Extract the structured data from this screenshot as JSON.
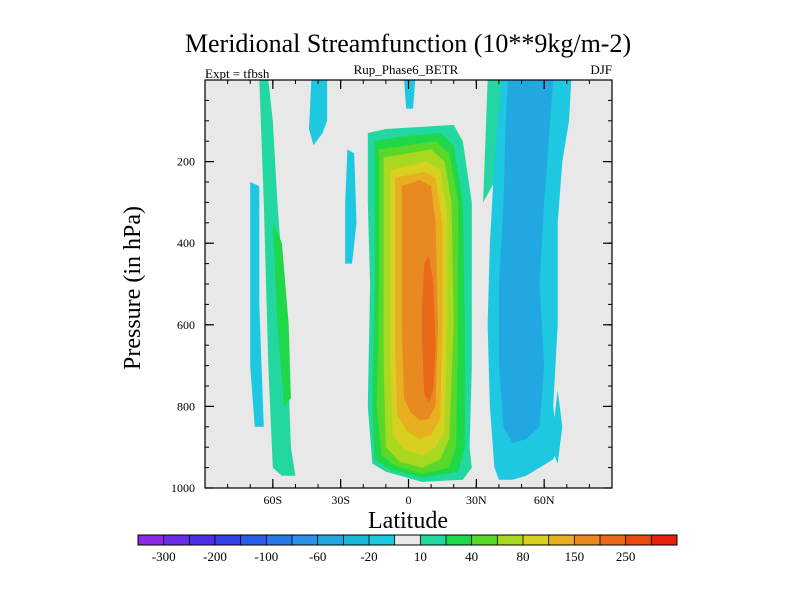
{
  "chart_data": {
    "type": "contour",
    "title": "Meridional Streamfunction (10**9kg/m-2)",
    "subtitle": "Rup_Phase6_BETR",
    "left_label": "Expt = tfbsh",
    "right_label": "DJF",
    "xlabel": "Latitude",
    "ylabel": "Pressure (in hPa)",
    "xlim": [
      -90,
      90
    ],
    "ylim": [
      1000,
      0
    ],
    "x_ticks": [
      {
        "value": -60,
        "label": "60S"
      },
      {
        "value": -30,
        "label": "30S"
      },
      {
        "value": 0,
        "label": "0"
      },
      {
        "value": 30,
        "label": "30N"
      },
      {
        "value": 60,
        "label": "60N"
      }
    ],
    "y_ticks": [
      {
        "value": 200,
        "label": "200"
      },
      {
        "value": 400,
        "label": "400"
      },
      {
        "value": 600,
        "label": "600"
      },
      {
        "value": 800,
        "label": "800"
      },
      {
        "value": 1000,
        "label": "1000"
      }
    ],
    "colorbar": {
      "levels": [
        -300,
        -250,
        -200,
        -150,
        -100,
        -80,
        -60,
        -40,
        -20,
        -10,
        10,
        20,
        40,
        60,
        80,
        100,
        150,
        200,
        250,
        300
      ],
      "labels": [
        "-300",
        "-200",
        "-100",
        "-60",
        "-20",
        "10",
        "40",
        "80",
        "150",
        "250"
      ],
      "colors": [
        "#8a2be2",
        "#6a2ee6",
        "#4b30e8",
        "#3440e8",
        "#2a5ee8",
        "#2a78e8",
        "#2a92e8",
        "#22a8e0",
        "#1ab8d8",
        "#1ec8e0",
        "#e8e8e8",
        "#22d8a0",
        "#1ed84a",
        "#5ad82a",
        "#a8d820",
        "#d8d020",
        "#e8b020",
        "#e88a20",
        "#e86a18",
        "#e84a10",
        "#e82010"
      ]
    },
    "regions": [
      {
        "value": "0-10",
        "color": "#e8e8e8",
        "points": [
          [
            -90,
            0
          ],
          [
            90,
            0
          ],
          [
            90,
            1000
          ],
          [
            -90,
            1000
          ]
        ]
      },
      {
        "value": "-10 to -20",
        "color": "#1ec8e0",
        "points": [
          [
            -70,
            250
          ],
          [
            -66,
            260
          ],
          [
            -66,
            550
          ],
          [
            -64,
            850
          ],
          [
            -68,
            850
          ],
          [
            -70,
            700
          ]
        ]
      },
      {
        "value": "10 to 20",
        "color": "#22d8a0",
        "points": [
          [
            -66,
            0
          ],
          [
            -62,
            0
          ],
          [
            -60,
            100
          ],
          [
            -58,
            300
          ],
          [
            -54,
            600
          ],
          [
            -52,
            900
          ],
          [
            -50,
            970
          ],
          [
            -56,
            970
          ],
          [
            -60,
            950
          ],
          [
            -62,
            700
          ],
          [
            -64,
            300
          ]
        ]
      },
      {
        "value": "20 to 40",
        "color": "#1ed84a",
        "points": [
          [
            -60,
            350
          ],
          [
            -56,
            400
          ],
          [
            -53,
            600
          ],
          [
            -52,
            780
          ],
          [
            -55,
            800
          ],
          [
            -58,
            600
          ]
        ]
      },
      {
        "value": "-10 to -20",
        "color": "#1ec8e0",
        "points": [
          [
            -43,
            0
          ],
          [
            -36,
            0
          ],
          [
            -36,
            100
          ],
          [
            -38,
            130
          ],
          [
            -42,
            160
          ],
          [
            -44,
            120
          ]
        ]
      },
      {
        "value": "-10 to -20",
        "color": "#1ec8e0",
        "points": [
          [
            -27,
            170
          ],
          [
            -24,
            180
          ],
          [
            -23,
            350
          ],
          [
            -25,
            450
          ],
          [
            -28,
            450
          ],
          [
            -28,
            300
          ]
        ]
      },
      {
        "value": "-10 to -20",
        "color": "#1ec8e0",
        "points": [
          [
            -2,
            0
          ],
          [
            3,
            0
          ],
          [
            2,
            70
          ],
          [
            -1,
            70
          ]
        ]
      },
      {
        "value": "10 to 20",
        "color": "#22d8a0",
        "points": [
          [
            -18,
            130
          ],
          [
            -10,
            120
          ],
          [
            20,
            110
          ],
          [
            24,
            150
          ],
          [
            28,
            300
          ],
          [
            28,
            700
          ],
          [
            27,
            900
          ],
          [
            28,
            950
          ],
          [
            24,
            980
          ],
          [
            6,
            985
          ],
          [
            -10,
            960
          ],
          [
            -16,
            940
          ],
          [
            -18,
            800
          ],
          [
            -17,
            500
          ],
          [
            -18,
            300
          ]
        ]
      },
      {
        "value": "20 to 40",
        "color": "#1ed84a",
        "points": [
          [
            -15,
            150
          ],
          [
            -5,
            140
          ],
          [
            14,
            130
          ],
          [
            20,
            160
          ],
          [
            24,
            300
          ],
          [
            25,
            600
          ],
          [
            25,
            900
          ],
          [
            22,
            960
          ],
          [
            6,
            975
          ],
          [
            -8,
            955
          ],
          [
            -15,
            930
          ],
          [
            -16,
            800
          ],
          [
            -15,
            500
          ],
          [
            -15,
            300
          ]
        ]
      },
      {
        "value": "40 to 60",
        "color": "#5ad82a",
        "points": [
          [
            -13,
            170
          ],
          [
            12,
            150
          ],
          [
            18,
            180
          ],
          [
            22,
            300
          ],
          [
            22,
            600
          ],
          [
            21,
            900
          ],
          [
            18,
            950
          ],
          [
            6,
            965
          ],
          [
            -6,
            945
          ],
          [
            -12,
            920
          ],
          [
            -14,
            800
          ],
          [
            -13,
            500
          ]
        ]
      },
      {
        "value": "60 to 80",
        "color": "#a8d820",
        "points": [
          [
            -11,
            190
          ],
          [
            10,
            170
          ],
          [
            16,
            200
          ],
          [
            19,
            300
          ],
          [
            20,
            600
          ],
          [
            18,
            880
          ],
          [
            14,
            930
          ],
          [
            6,
            950
          ],
          [
            -4,
            935
          ],
          [
            -10,
            900
          ],
          [
            -11,
            700
          ],
          [
            -11,
            400
          ]
        ]
      },
      {
        "value": "80 to 100",
        "color": "#d8d020",
        "points": [
          [
            -8,
            220
          ],
          [
            8,
            200
          ],
          [
            14,
            220
          ],
          [
            17,
            320
          ],
          [
            17,
            600
          ],
          [
            16,
            860
          ],
          [
            12,
            900
          ],
          [
            6,
            920
          ],
          [
            -2,
            905
          ],
          [
            -7,
            870
          ],
          [
            -8,
            700
          ],
          [
            -8,
            400
          ]
        ]
      },
      {
        "value": "100 to 150",
        "color": "#e8b020",
        "points": [
          [
            -6,
            240
          ],
          [
            7,
            225
          ],
          [
            12,
            240
          ],
          [
            15,
            350
          ],
          [
            15,
            600
          ],
          [
            14,
            830
          ],
          [
            10,
            870
          ],
          [
            5,
            880
          ],
          [
            -1,
            860
          ],
          [
            -5,
            820
          ],
          [
            -6,
            650
          ],
          [
            -6,
            400
          ]
        ]
      },
      {
        "value": "150 to 200",
        "color": "#e88a20",
        "points": [
          [
            -3,
            260
          ],
          [
            5,
            245
          ],
          [
            10,
            260
          ],
          [
            12,
            350
          ],
          [
            13,
            600
          ],
          [
            12,
            800
          ],
          [
            9,
            830
          ],
          [
            5,
            835
          ],
          [
            1,
            815
          ],
          [
            -2,
            780
          ],
          [
            -3,
            600
          ],
          [
            -3,
            400
          ]
        ]
      },
      {
        "value": "200 to 250",
        "color": "#e86a18",
        "points": [
          [
            7,
            450
          ],
          [
            9,
            430
          ],
          [
            11,
            500
          ],
          [
            12,
            650
          ],
          [
            11,
            760
          ],
          [
            9,
            790
          ],
          [
            7,
            770
          ],
          [
            6,
            650
          ],
          [
            6,
            550
          ]
        ]
      },
      {
        "value": "10 to 20",
        "color": "#22d8a0",
        "points": [
          [
            35,
            0
          ],
          [
            44,
            0
          ],
          [
            42,
            150
          ],
          [
            38,
            250
          ],
          [
            33,
            300
          ],
          [
            34,
            150
          ]
        ]
      },
      {
        "value": "-10 to -20",
        "color": "#1ec8e0",
        "points": [
          [
            41,
            0
          ],
          [
            72,
            0
          ],
          [
            71,
            100
          ],
          [
            68,
            200
          ],
          [
            66,
            350
          ],
          [
            66,
            600
          ],
          [
            64,
            800
          ],
          [
            66,
            900
          ],
          [
            64,
            930
          ],
          [
            58,
            950
          ],
          [
            52,
            970
          ],
          [
            46,
            980
          ],
          [
            40,
            980
          ],
          [
            38,
            950
          ],
          [
            36,
            800
          ],
          [
            35,
            600
          ],
          [
            36,
            400
          ],
          [
            38,
            200
          ]
        ]
      },
      {
        "value": "-20 to -40",
        "color": "#22a8e0",
        "points": [
          [
            44,
            0
          ],
          [
            64,
            0
          ],
          [
            62,
            150
          ],
          [
            60,
            300
          ],
          [
            58,
            500
          ],
          [
            60,
            700
          ],
          [
            58,
            850
          ],
          [
            52,
            880
          ],
          [
            46,
            890
          ],
          [
            42,
            850
          ],
          [
            40,
            700
          ],
          [
            40,
            500
          ],
          [
            42,
            300
          ],
          [
            43,
            100
          ]
        ]
      },
      {
        "value": "-10 to -20",
        "color": "#1ec8e0",
        "points": [
          [
            66,
            760
          ],
          [
            68,
            850
          ],
          [
            66,
            940
          ],
          [
            63,
            900
          ]
        ]
      }
    ]
  }
}
